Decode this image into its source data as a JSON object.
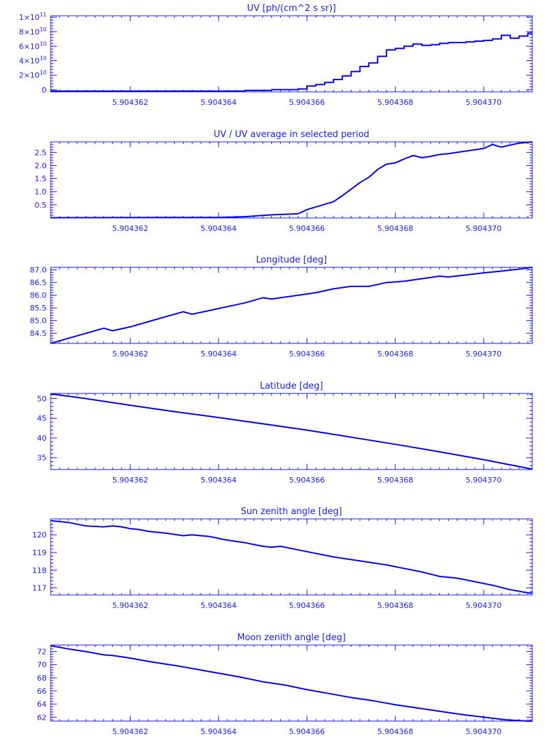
{
  "colors": {
    "line": "#0000ee",
    "axis": "#1a1aff",
    "background": "#ffffff"
  },
  "chart_data": [
    {
      "type": "line",
      "title": "UV [ph/(cm^2 s sr)]",
      "xlim": [
        5.9043602,
        5.9043711
      ],
      "ylim": [
        -3000000000.0,
        102000000000.0
      ],
      "xticks": [
        5.904362,
        5.904364,
        5.904366,
        5.904368,
        5.90437
      ],
      "xtick_labels": [
        "5.904362",
        "5.904364",
        "5.904366",
        "5.904368",
        "5.904370"
      ],
      "yticks": [
        0,
        20000000000.0,
        40000000000.0,
        60000000000.0,
        80000000000.0,
        100000000000.0
      ],
      "ytick_labels": [
        {
          "mantissa": "0",
          "exponent": ""
        },
        {
          "mantissa": "2×10",
          "exponent": "10"
        },
        {
          "mantissa": "4×10",
          "exponent": "10"
        },
        {
          "mantissa": "6×10",
          "exponent": "10"
        },
        {
          "mantissa": "8×10",
          "exponent": "10"
        },
        {
          "mantissa": "1×10",
          "exponent": "11"
        }
      ],
      "step": true,
      "series": [
        {
          "x": [
            5.9043602,
            5.9043646,
            5.9043652,
            5.9043658,
            5.904366,
            5.9043662,
            5.9043664,
            5.9043666,
            5.9043668,
            5.904367,
            5.9043672,
            5.9043674,
            5.9043676,
            5.9043678,
            5.904368,
            5.9043682,
            5.9043684,
            5.9043686,
            5.9043688,
            5.904369,
            5.9043692,
            5.9043694,
            5.9043696,
            5.9043698,
            5.90437,
            5.9043702,
            5.9043704,
            5.9043706,
            5.9043708,
            5.904371,
            5.9043711
          ],
          "y": [
            -2000000000.0,
            -1000000000.0,
            0,
            1000000000.0,
            5000000000.0,
            7000000000.0,
            10000000000.0,
            14000000000.0,
            19000000000.0,
            25000000000.0,
            32000000000.0,
            37000000000.0,
            46000000000.0,
            55000000000.0,
            57000000000.0,
            60000000000.0,
            63000000000.0,
            61000000000.0,
            62000000000.0,
            64000000000.0,
            65000000000.0,
            65000000000.0,
            66000000000.0,
            67000000000.0,
            68000000000.0,
            70000000000.0,
            75000000000.0,
            71000000000.0,
            74000000000.0,
            78000000000.0,
            78000000000.0
          ]
        }
      ]
    },
    {
      "type": "line",
      "title": "UV / UV average in selected period",
      "xlim": [
        5.9043602,
        5.9043711
      ],
      "ylim": [
        0.0,
        2.9
      ],
      "xticks": [
        5.904362,
        5.904364,
        5.904366,
        5.904368,
        5.90437
      ],
      "xtick_labels": [
        "5.904362",
        "5.904364",
        "5.904366",
        "5.904368",
        "5.904370"
      ],
      "yticks": [
        0.5,
        1.0,
        1.5,
        2.0,
        2.5
      ],
      "ytick_labels": [
        "0.5",
        "1.0",
        "1.5",
        "2.0",
        "2.5"
      ],
      "series": [
        {
          "x": [
            5.9043602,
            5.904364,
            5.9043646,
            5.9043652,
            5.9043658,
            5.904366,
            5.9043662,
            5.9043664,
            5.9043666,
            5.9043668,
            5.904367,
            5.9043672,
            5.9043674,
            5.9043676,
            5.9043678,
            5.904368,
            5.9043682,
            5.9043684,
            5.9043686,
            5.9043688,
            5.904369,
            5.9043692,
            5.9043694,
            5.9043696,
            5.9043698,
            5.90437,
            5.9043702,
            5.9043704,
            5.9043706,
            5.9043708,
            5.904371,
            5.9043711
          ],
          "y": [
            0.01,
            0.02,
            0.05,
            0.12,
            0.16,
            0.32,
            0.42,
            0.52,
            0.62,
            0.85,
            1.1,
            1.35,
            1.55,
            1.85,
            2.05,
            2.1,
            2.25,
            2.38,
            2.3,
            2.35,
            2.42,
            2.45,
            2.5,
            2.55,
            2.6,
            2.65,
            2.8,
            2.7,
            2.78,
            2.85,
            2.88,
            2.9
          ]
        }
      ]
    },
    {
      "type": "line",
      "title": "Longitude [deg]",
      "xlim": [
        5.9043602,
        5.9043711
      ],
      "ylim": [
        84.1,
        87.1
      ],
      "xticks": [
        5.904362,
        5.904364,
        5.904366,
        5.904368,
        5.90437
      ],
      "xtick_labels": [
        "5.904362",
        "5.904364",
        "5.904366",
        "5.904368",
        "5.904370"
      ],
      "yticks": [
        84.5,
        85.0,
        85.5,
        86.0,
        86.5,
        87.0
      ],
      "ytick_labels": [
        "84.5",
        "85.0",
        "85.5",
        "86.0",
        "86.5",
        "87.0"
      ],
      "series": [
        {
          "x": [
            5.9043602,
            5.9043606,
            5.904361,
            5.9043614,
            5.9043616,
            5.904362,
            5.9043624,
            5.9043628,
            5.9043632,
            5.9043634,
            5.9043638,
            5.9043642,
            5.9043646,
            5.904365,
            5.9043652,
            5.9043654,
            5.9043658,
            5.9043662,
            5.9043666,
            5.904367,
            5.9043674,
            5.9043678,
            5.9043682,
            5.9043686,
            5.904369,
            5.9043692,
            5.9043696,
            5.90437,
            5.9043704,
            5.9043708,
            5.9043711
          ],
          "y": [
            84.1,
            84.3,
            84.5,
            84.7,
            84.6,
            84.75,
            84.95,
            85.15,
            85.35,
            85.25,
            85.4,
            85.55,
            85.7,
            85.9,
            85.85,
            85.9,
            86.0,
            86.1,
            86.25,
            86.35,
            86.35,
            86.5,
            86.55,
            86.65,
            86.75,
            86.72,
            86.8,
            86.88,
            86.95,
            87.03,
            87.1
          ]
        }
      ]
    },
    {
      "type": "line",
      "title": "Latitude [deg]",
      "xlim": [
        5.9043602,
        5.9043711
      ],
      "ylim": [
        32.0,
        51.3
      ],
      "xticks": [
        5.904362,
        5.904364,
        5.904366,
        5.904368,
        5.90437
      ],
      "xtick_labels": [
        "5.904362",
        "5.904364",
        "5.904366",
        "5.904368",
        "5.904370"
      ],
      "yticks": [
        35,
        40,
        45,
        50
      ],
      "ytick_labels": [
        "35",
        "40",
        "45",
        "50"
      ],
      "series": [
        {
          "x": [
            5.9043602,
            5.904361,
            5.904362,
            5.904363,
            5.904364,
            5.904365,
            5.904366,
            5.904367,
            5.904368,
            5.904369,
            5.90437,
            5.9043711
          ],
          "y": [
            51.2,
            50.0,
            48.3,
            46.7,
            45.2,
            43.6,
            42.0,
            40.2,
            38.4,
            36.5,
            34.5,
            32.1
          ]
        }
      ]
    },
    {
      "type": "line",
      "title": "Sun zenith angle [deg]",
      "xlim": [
        5.9043602,
        5.9043711
      ],
      "ylim": [
        116.6,
        120.9
      ],
      "xticks": [
        5.904362,
        5.904364,
        5.904366,
        5.904368,
        5.90437
      ],
      "xtick_labels": [
        "5.904362",
        "5.904364",
        "5.904366",
        "5.904368",
        "5.904370"
      ],
      "yticks": [
        117,
        118,
        119,
        120
      ],
      "ytick_labels": [
        "117",
        "118",
        "119",
        "120"
      ],
      "series": [
        {
          "x": [
            5.9043602,
            5.9043606,
            5.904361,
            5.9043614,
            5.9043616,
            5.9043618,
            5.904362,
            5.9043622,
            5.9043624,
            5.9043628,
            5.9043632,
            5.9043634,
            5.9043638,
            5.9043642,
            5.9043646,
            5.904365,
            5.9043652,
            5.9043654,
            5.9043658,
            5.9043662,
            5.9043666,
            5.904367,
            5.9043674,
            5.9043678,
            5.9043682,
            5.9043686,
            5.904369,
            5.9043694,
            5.9043698,
            5.9043702,
            5.9043706,
            5.904371,
            5.9043711
          ],
          "y": [
            120.8,
            120.7,
            120.5,
            120.45,
            120.5,
            120.45,
            120.35,
            120.3,
            120.2,
            120.1,
            119.95,
            120.0,
            119.9,
            119.7,
            119.55,
            119.35,
            119.3,
            119.35,
            119.15,
            118.95,
            118.75,
            118.6,
            118.45,
            118.3,
            118.1,
            117.9,
            117.65,
            117.55,
            117.35,
            117.15,
            116.9,
            116.72,
            116.7
          ]
        }
      ]
    },
    {
      "type": "line",
      "title": "Moon zenith angle [deg]",
      "xlim": [
        5.9043602,
        5.9043711
      ],
      "ylim": [
        61.4,
        73.0
      ],
      "xticks": [
        5.904362,
        5.904364,
        5.904366,
        5.904368,
        5.90437
      ],
      "xtick_labels": [
        "5.904362",
        "5.904364",
        "5.904366",
        "5.904368",
        "5.904370"
      ],
      "yticks": [
        62,
        64,
        66,
        68,
        70,
        72
      ],
      "ytick_labels": [
        "62",
        "64",
        "66",
        "68",
        "70",
        "72"
      ],
      "series": [
        {
          "x": [
            5.9043602,
            5.9043606,
            5.904361,
            5.9043614,
            5.9043616,
            5.904362,
            5.9043625,
            5.904363,
            5.9043635,
            5.904364,
            5.9043645,
            5.904365,
            5.9043655,
            5.904366,
            5.9043665,
            5.904367,
            5.9043675,
            5.904368,
            5.9043685,
            5.904369,
            5.9043695,
            5.90437,
            5.9043705,
            5.904371,
            5.9043711
          ],
          "y": [
            72.9,
            72.4,
            72.0,
            71.5,
            71.4,
            71.0,
            70.4,
            69.9,
            69.3,
            68.7,
            68.1,
            67.4,
            66.9,
            66.2,
            65.6,
            65.0,
            64.5,
            63.9,
            63.4,
            62.9,
            62.4,
            62.0,
            61.6,
            61.4,
            61.4
          ]
        }
      ]
    }
  ]
}
